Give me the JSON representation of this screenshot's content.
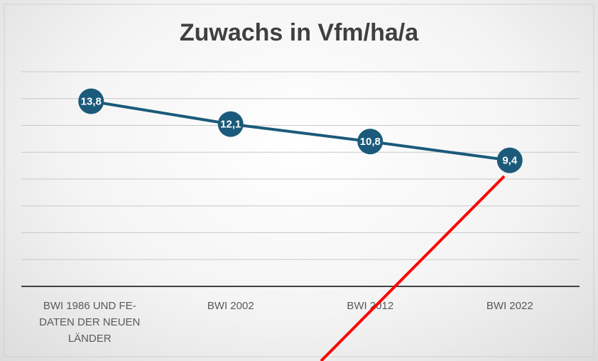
{
  "chart_data": {
    "type": "line",
    "title": "Zuwachs in Vfm/ha/a",
    "categories": [
      "BWI 1986 UND FE-DATEN DER NEUEN LÄNDER",
      "BWI 2002",
      "BWI 2012",
      "BWI 2022"
    ],
    "series": [
      {
        "name": "Zuwachs",
        "color": "#1b5a7a",
        "values": [
          13.8,
          12.1,
          10.8,
          9.4
        ],
        "value_labels": [
          "13,8",
          "12,1",
          "10,8",
          "9,4"
        ]
      }
    ],
    "ylim": [
      0,
      16
    ],
    "yticks": [
      0,
      2,
      4,
      6,
      8,
      10,
      12,
      14,
      16
    ],
    "grid": true
  }
}
